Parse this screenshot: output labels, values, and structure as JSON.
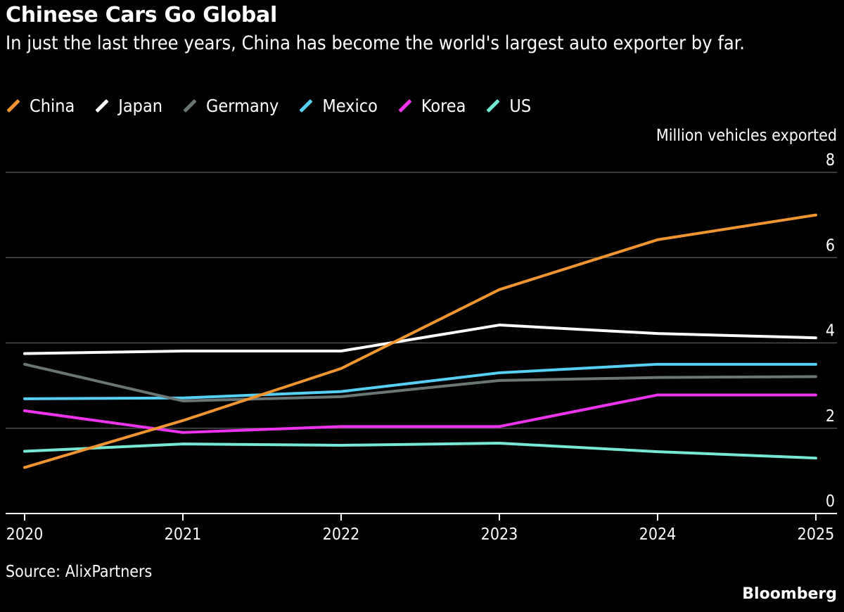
{
  "header": {
    "title": "Chinese Cars Go Global",
    "subtitle": "In just the last three years, China has become the world's largest auto exporter by far."
  },
  "footer": {
    "source": "Source: AlixPartners",
    "brand": "Bloomberg"
  },
  "colors": {
    "background": "#000000",
    "grid": "#4d4d4d",
    "axis": "#ffffff"
  },
  "chart_data": {
    "type": "line",
    "title": "Chinese Cars Go Global",
    "ylabel": "Million vehicles exported",
    "xlabel": "",
    "x": [
      "2020",
      "2021",
      "2022",
      "2023",
      "2024",
      "2025"
    ],
    "ylim": [
      0,
      8
    ],
    "yticks": [
      0,
      2,
      4,
      6,
      8
    ],
    "grid": true,
    "legend_position": "top-left",
    "series": [
      {
        "name": "China",
        "color": "#f0952f",
        "values": [
          1.08,
          2.18,
          3.4,
          5.25,
          6.42,
          7.0
        ]
      },
      {
        "name": "Japan",
        "color": "#ffffff",
        "values": [
          3.75,
          3.81,
          3.81,
          4.42,
          4.22,
          4.12
        ]
      },
      {
        "name": "Germany",
        "color": "#6a7676",
        "values": [
          3.5,
          2.64,
          2.74,
          3.12,
          3.19,
          3.21
        ]
      },
      {
        "name": "Mexico",
        "color": "#57d0f5",
        "values": [
          2.69,
          2.71,
          2.86,
          3.3,
          3.5,
          3.5
        ]
      },
      {
        "name": "Korea",
        "color": "#ee33ee",
        "values": [
          2.41,
          1.9,
          2.04,
          2.04,
          2.78,
          2.78
        ]
      },
      {
        "name": "US",
        "color": "#76e8d6",
        "values": [
          1.46,
          1.63,
          1.6,
          1.65,
          1.45,
          1.3
        ]
      }
    ]
  }
}
